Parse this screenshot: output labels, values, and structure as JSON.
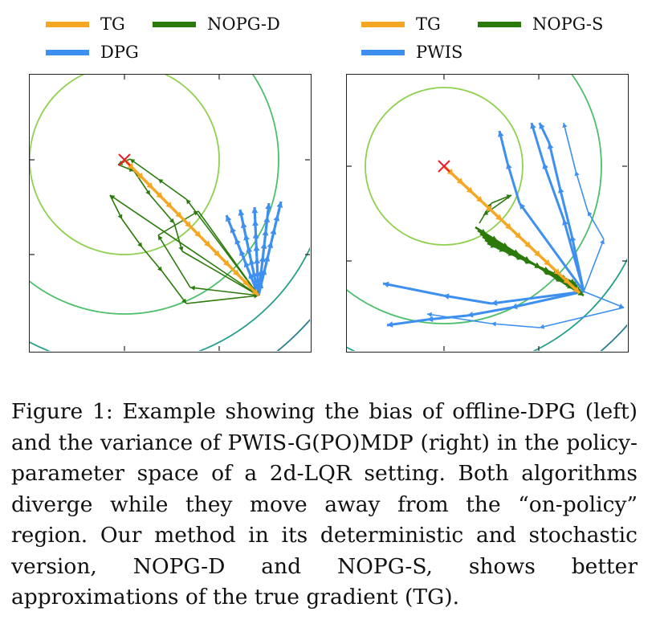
{
  "figure": {
    "panels": [
      {
        "legend": [
          {
            "label": "TG",
            "color": "#f5a623"
          },
          {
            "label": "NOPG-D",
            "color": "#2b7a0b"
          },
          {
            "label": "DPG",
            "color": "#3d8ff0"
          }
        ]
      },
      {
        "legend": [
          {
            "label": "TG",
            "color": "#f5a623"
          },
          {
            "label": "NOPG-S",
            "color": "#2b7a0b"
          },
          {
            "label": "PWIS",
            "color": "#3d8ff0"
          }
        ]
      }
    ],
    "optimum_marker": {
      "symbol": "×",
      "color": "#e8202a"
    },
    "contour_colors": [
      "#8fd14f",
      "#4cbf6b",
      "#25a08a",
      "#2a7f8e",
      "#33638d",
      "#3f4788",
      "#472c7a"
    ],
    "caption": "Figure 1: Example showing the bias of offline-DPG (left) and the variance of PWIS-G(PO)MDP (right) in the policy-parameter space of a 2d-LQR setting. Both algorithms diverge while they move away from the “on-policy” region. Our method in its deterministic and stochastic version, NOPG-D and NOPG-S, shows better approximations of the true gradient (TG)."
  }
}
